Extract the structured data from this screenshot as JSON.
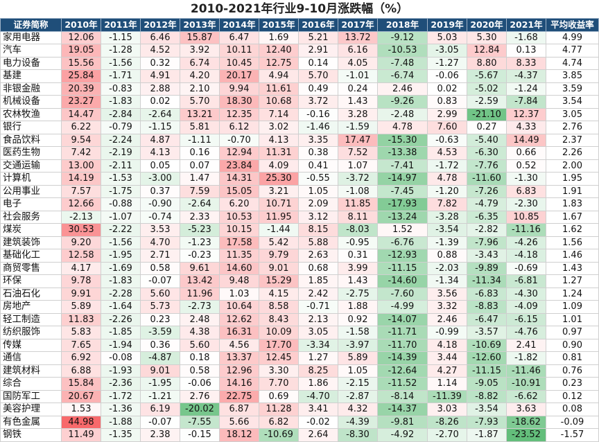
{
  "title": "2010-2021年行业9-10月涨跌幅（%）",
  "headers": [
    "证券简称",
    "2010年",
    "2011年",
    "2012年",
    "2013年",
    "2014年",
    "2015年",
    "2016年",
    "2017年",
    "2018年",
    "2019年",
    "2020年",
    "2021年",
    "平均收益率"
  ],
  "colors": {
    "header_bg": "#1f4e79",
    "positive": "#f8696b",
    "negative": "#63be7b",
    "neutral": "#ffffff"
  },
  "rows": [
    {
      "name": "家用电器",
      "values": [
        12.06,
        -1.15,
        6.46,
        15.87,
        6.47,
        1.69,
        5.21,
        13.72,
        -9.12,
        5.03,
        5.3,
        -1.68
      ],
      "avg": "4.99"
    },
    {
      "name": "汽车",
      "values": [
        19.05,
        -1.28,
        4.52,
        3.92,
        10.11,
        12.4,
        2.91,
        6.16,
        -10.53,
        -3.05,
        12.84,
        0.13
      ],
      "avg": "4.77"
    },
    {
      "name": "电力设备",
      "values": [
        15.56,
        -1.56,
        0.32,
        6.74,
        10.45,
        12.75,
        0.14,
        4.05,
        -7.48,
        -1.27,
        8.8,
        8.33
      ],
      "avg": "4.74"
    },
    {
      "name": "基建",
      "values": [
        25.84,
        -1.71,
        4.91,
        4.2,
        20.17,
        4.94,
        5.7,
        -1.01,
        -6.74,
        -0.06,
        -5.67,
        -4.37
      ],
      "avg": "3.85"
    },
    {
      "name": "非银金融",
      "values": [
        20.39,
        -0.83,
        2.88,
        2.1,
        9.94,
        11.61,
        0.49,
        0.24,
        2.46,
        0.02,
        -5.02,
        -1.24
      ],
      "avg": "3.59"
    },
    {
      "name": "机械设备",
      "values": [
        23.27,
        -1.83,
        0.02,
        5.7,
        18.3,
        10.68,
        3.72,
        1.43,
        -9.26,
        0.83,
        -2.59,
        -7.84
      ],
      "avg": "3.54"
    },
    {
      "name": "农林牧渔",
      "values": [
        14.47,
        -2.84,
        -2.64,
        13.21,
        12.35,
        7.14,
        -0.16,
        3.28,
        -2.48,
        2.99,
        -21.1,
        12.37
      ],
      "avg": "3.05"
    },
    {
      "name": "银行",
      "values": [
        6.22,
        -0.79,
        -1.15,
        5.81,
        6.12,
        3.02,
        -1.46,
        -1.59,
        4.78,
        7.6,
        0.27,
        4.33
      ],
      "avg": "2.76"
    },
    {
      "name": "食品饮料",
      "values": [
        9.54,
        -2.24,
        4.87,
        -1.11,
        -0.7,
        4.13,
        3.35,
        17.47,
        -15.3,
        -0.63,
        -5.4,
        14.49
      ],
      "avg": "2.37"
    },
    {
      "name": "医药生物",
      "values": [
        7.42,
        -2.19,
        4.13,
        0.16,
        12.94,
        11.31,
        0.38,
        7.52,
        -13.38,
        4.53,
        -6.3,
        0.66
      ],
      "avg": "2.26"
    },
    {
      "name": "交通运输",
      "values": [
        13.0,
        -2.11,
        0.05,
        0.07,
        23.84,
        4.09,
        0.41,
        1.07,
        -7.41,
        -1.72,
        -7.76,
        0.52
      ],
      "avg": "2.00"
    },
    {
      "name": "计算机",
      "values": [
        14.19,
        -1.53,
        -3.0,
        1.47,
        14.31,
        25.3,
        -0.55,
        -3.72,
        -14.97,
        4.78,
        -11.6,
        -1.3
      ],
      "avg": "1.95"
    },
    {
      "name": "公用事业",
      "values": [
        7.57,
        -1.75,
        0.37,
        7.59,
        15.05,
        3.21,
        1.05,
        -1.08,
        -7.45,
        -1.2,
        -7.26,
        6.83
      ],
      "avg": "1.91"
    },
    {
      "name": "电子",
      "values": [
        12.66,
        -0.88,
        -0.9,
        -2.64,
        6.2,
        10.71,
        2.09,
        11.85,
        -17.93,
        7.82,
        -4.79,
        -2.3
      ],
      "avg": "1.83"
    },
    {
      "name": "社会服务",
      "values": [
        -2.13,
        -1.07,
        -0.74,
        2.33,
        10.53,
        11.95,
        3.12,
        8.11,
        -13.24,
        -3.28,
        -6.35,
        10.85
      ],
      "avg": "1.67"
    },
    {
      "name": "煤炭",
      "values": [
        30.53,
        -2.22,
        3.53,
        -5.23,
        10.15,
        -1.44,
        8.15,
        -8.03,
        1.52,
        -3.54,
        -2.82,
        -11.16
      ],
      "avg": "1.62"
    },
    {
      "name": "建筑装饰",
      "values": [
        9.2,
        -1.56,
        4.7,
        -1.23,
        17.58,
        5.42,
        5.88,
        -0.95,
        -6.76,
        -1.39,
        -7.96,
        -4.26
      ],
      "avg": "1.56"
    },
    {
      "name": "基础化工",
      "values": [
        12.58,
        -1.95,
        2.71,
        -0.23,
        11.35,
        9.79,
        2.63,
        0.31,
        -12.93,
        0.88,
        -3.43,
        -4.18
      ],
      "avg": "1.46"
    },
    {
      "name": "商贸零售",
      "values": [
        4.17,
        -1.69,
        0.58,
        9.61,
        14.6,
        9.01,
        0.68,
        3.99,
        -11.15,
        -2.03,
        -9.89,
        -0.69
      ],
      "avg": "1.43"
    },
    {
      "name": "环保",
      "values": [
        9.78,
        -1.83,
        -0.07,
        13.42,
        9.48,
        15.29,
        1.85,
        1.43,
        -14.6,
        -1.34,
        -11.34,
        -6.81
      ],
      "avg": "1.27"
    },
    {
      "name": "石油石化",
      "values": [
        9.91,
        -2.28,
        5.6,
        11.96,
        1.03,
        4.15,
        2.42,
        -2.75,
        -7.6,
        3.56,
        -6.83,
        -4.3
      ],
      "avg": "1.24"
    },
    {
      "name": "房地产",
      "values": [
        5.89,
        -1.64,
        5.73,
        -2.73,
        10.64,
        8.58,
        -0.71,
        1.88,
        -4.99,
        3.32,
        -8.83,
        -4.09
      ],
      "avg": "1.09"
    },
    {
      "name": "轻工制造",
      "values": [
        11.83,
        -2.26,
        0.23,
        2.48,
        12.62,
        8.43,
        2.13,
        0.92,
        -14.07,
        2.46,
        -6.47,
        -6.15
      ],
      "avg": "1.01"
    },
    {
      "name": "纺织服饰",
      "values": [
        5.83,
        -1.85,
        -3.59,
        4.38,
        16.31,
        10.09,
        3.05,
        -1.58,
        -11.71,
        -0.99,
        -3.57,
        -4.76
      ],
      "avg": "0.97"
    },
    {
      "name": "传媒",
      "values": [
        7.65,
        -1.94,
        0.36,
        5.6,
        4.56,
        17.7,
        -3.34,
        -3.97,
        -11.7,
        4.18,
        -10.69,
        2.41
      ],
      "avg": "0.90"
    },
    {
      "name": "通信",
      "values": [
        6.92,
        -0.08,
        -4.87,
        0.18,
        13.37,
        12.45,
        1.27,
        5.89,
        -14.39,
        3.44,
        -12.6,
        -1.82
      ],
      "avg": "0.81"
    },
    {
      "name": "建筑材料",
      "values": [
        6.88,
        -1.93,
        9.01,
        0.58,
        12.96,
        3.3,
        8.25,
        1.05,
        -12.64,
        4.27,
        -11.15,
        -11.46
      ],
      "avg": "0.76"
    },
    {
      "name": "综合",
      "values": [
        15.84,
        -2.36,
        -1.95,
        -0.06,
        14.16,
        7.7,
        1.86,
        -2.15,
        -11.52,
        1.14,
        -9.05,
        -10.91
      ],
      "avg": "0.23"
    },
    {
      "name": "国防军工",
      "values": [
        20.67,
        -1.72,
        -1.21,
        2.76,
        22.75,
        0.69,
        -4.7,
        -2.87,
        -8.14,
        -11.39,
        -8.82,
        -6.62
      ],
      "avg": "0.12"
    },
    {
      "name": "美容护理",
      "values": [
        1.53,
        -1.36,
        6.19,
        -20.02,
        6.87,
        11.28,
        3.41,
        4.32,
        -14.37,
        3.03,
        -3.54,
        3.63
      ],
      "avg": "0.08"
    },
    {
      "name": "有色金属",
      "values": [
        44.98,
        -1.88,
        -0.07,
        -7.55,
        5.66,
        6.82,
        -0.02,
        -4.39,
        -9.81,
        -8.26,
        -7.93,
        -18.62
      ],
      "avg": "-0.09"
    },
    {
      "name": "钢铁",
      "values": [
        11.49,
        -1.35,
        2.38,
        -0.15,
        18.12,
        -10.69,
        2.64,
        -8.3,
        -4.92,
        -2.7,
        -1.87,
        -23.52
      ],
      "avg": "-1.57"
    }
  ]
}
